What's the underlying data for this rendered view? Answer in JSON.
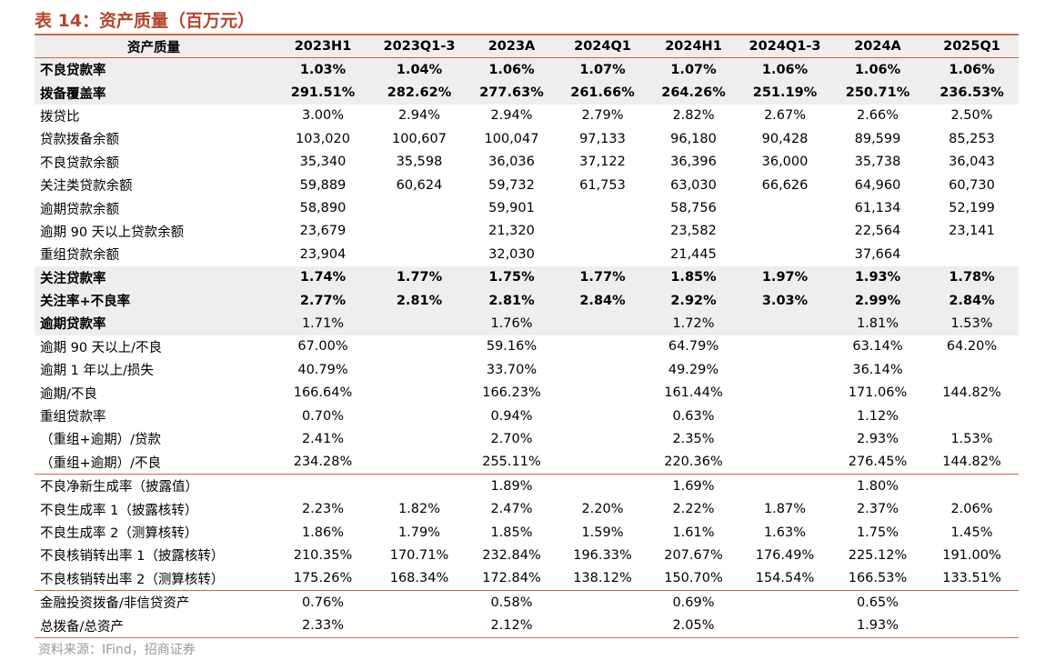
{
  "title": "表 14：资产质量（百万元）",
  "table": {
    "header": [
      "资产质量",
      "2023H1",
      "2023Q1-3",
      "2023A",
      "2024Q1",
      "2024H1",
      "2024Q1-3",
      "2024A",
      "2025Q1"
    ],
    "rows": [
      [
        "不良贷款率",
        "1.03%",
        "1.04%",
        "1.06%",
        "1.07%",
        "1.07%",
        "1.06%",
        "1.06%",
        "1.06%"
      ],
      [
        "拨备覆盖率",
        "291.51%",
        "282.62%",
        "277.63%",
        "261.66%",
        "264.26%",
        "251.19%",
        "250.71%",
        "236.53%"
      ],
      [
        "拨贷比",
        "3.00%",
        "2.94%",
        "2.94%",
        "2.79%",
        "2.82%",
        "2.67%",
        "2.66%",
        "2.50%"
      ],
      [
        "贷款拨备余额",
        "103,020",
        "100,607",
        "100,047",
        "97,133",
        "96,180",
        "90,428",
        "89,599",
        "85,253"
      ],
      [
        "不良贷款余额",
        "35,340",
        "35,598",
        "36,036",
        "37,122",
        "36,396",
        "36,000",
        "35,738",
        "36,043"
      ],
      [
        "关注类贷款余额",
        "59,889",
        "60,624",
        "59,732",
        "61,753",
        "63,030",
        "66,626",
        "64,960",
        "60,730"
      ],
      [
        "逾期贷款余额",
        "58,890",
        null,
        "59,901",
        null,
        "58,756",
        null,
        "61,134",
        "52,199"
      ],
      [
        "逾期 90 天以上贷款余额",
        "23,679",
        null,
        "21,320",
        null,
        "23,582",
        null,
        "22,564",
        "23,141"
      ],
      [
        "重组贷款余额",
        "23,904",
        null,
        "32,030",
        null,
        "21,445",
        null,
        "37,664",
        null
      ],
      [
        "关注贷款率",
        "1.74%",
        "1.77%",
        "1.75%",
        "1.77%",
        "1.85%",
        "1.97%",
        "1.93%",
        "1.78%"
      ],
      [
        "关注率+不良率",
        "2.77%",
        "2.81%",
        "2.81%",
        "2.84%",
        "2.92%",
        "3.03%",
        "2.99%",
        "2.84%"
      ],
      [
        "逾期贷款率",
        "1.71%",
        null,
        "1.76%",
        null,
        "1.72%",
        null,
        "1.81%",
        "1.53%"
      ],
      [
        "逾期 90 天以上/不良",
        "67.00%",
        null,
        "59.16%",
        null,
        "64.79%",
        null,
        "63.14%",
        "64.20%"
      ],
      [
        "逾期 1 年以上/损失",
        "40.79%",
        null,
        "33.70%",
        null,
        "49.29%",
        null,
        "36.14%",
        null
      ],
      [
        "逾期/不良",
        "166.64%",
        null,
        "166.23%",
        null,
        "161.44%",
        null,
        "171.06%",
        "144.82%"
      ],
      [
        "重组贷款率",
        "0.70%",
        null,
        "0.94%",
        null,
        "0.63%",
        null,
        "1.12%",
        null
      ],
      [
        "（重组+逾期）/贷款",
        "2.41%",
        null,
        "2.70%",
        null,
        "2.35%",
        null,
        "2.93%",
        "1.53%"
      ],
      [
        "（重组+逾期）/不良",
        "234.28%",
        null,
        "255.11%",
        null,
        "220.36%",
        null,
        "276.45%",
        "144.82%"
      ],
      [
        "不良净新生成率（披露值）",
        null,
        null,
        "1.89%",
        null,
        "1.69%",
        null,
        "1.80%",
        null
      ],
      [
        "不良生成率 1（披露核转）",
        "2.23%",
        "1.82%",
        "2.47%",
        "2.20%",
        "2.22%",
        "1.87%",
        "2.37%",
        "2.06%"
      ],
      [
        "不良生成率 2（测算核转）",
        "1.86%",
        "1.79%",
        "1.85%",
        "1.59%",
        "1.61%",
        "1.63%",
        "1.75%",
        "1.45%"
      ],
      [
        "不良核销转出率 1（披露核转）",
        "210.35%",
        "170.71%",
        "232.84%",
        "196.33%",
        "207.67%",
        "176.49%",
        "225.12%",
        "191.00%"
      ],
      [
        "不良核销转出率 2（测算核转）",
        "175.26%",
        "168.34%",
        "172.84%",
        "138.12%",
        "150.70%",
        "154.54%",
        "166.53%",
        "133.51%"
      ],
      [
        "金融投资拨备/非信贷资产",
        "0.76%",
        null,
        "0.58%",
        null,
        "0.69%",
        null,
        "0.65%",
        null
      ],
      [
        "总拨备/总资产",
        "2.33%",
        null,
        "2.12%",
        null,
        "2.05%",
        null,
        "1.93%",
        null
      ]
    ]
  },
  "source": "资料来源：IFind，招商证券"
}
